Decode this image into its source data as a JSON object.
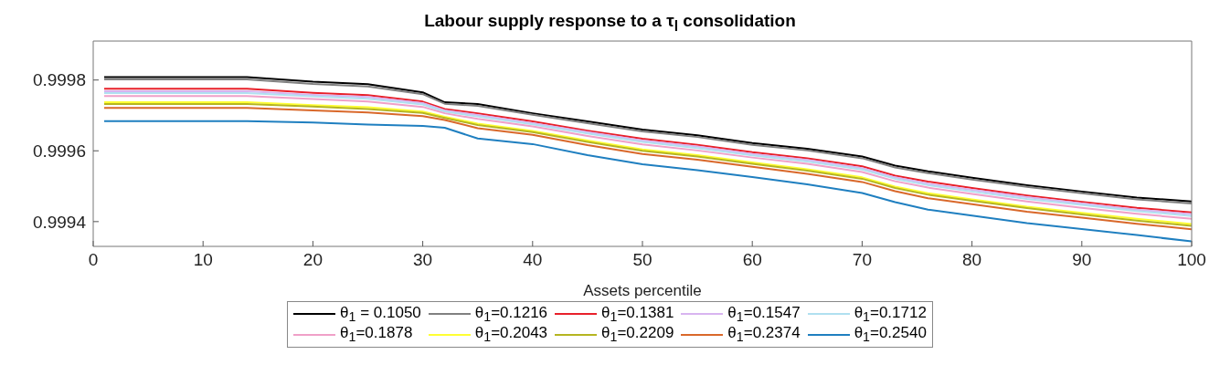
{
  "chart_data": {
    "type": "line",
    "title": "Labour supply response to a τ$_{l}$ consolidation",
    "xlabel": "Assets percentile",
    "x": [
      1,
      14,
      20,
      25,
      30,
      32,
      35,
      40,
      45,
      50,
      55,
      60,
      65,
      70,
      73,
      76,
      80,
      85,
      90,
      95,
      100
    ],
    "xlim": [
      0,
      100
    ],
    "xticks": [
      0,
      10,
      20,
      30,
      40,
      50,
      60,
      70,
      80,
      90,
      100
    ],
    "ylim": [
      0.99933,
      0.99991
    ],
    "yticks": [
      0.9994,
      0.9996,
      0.9998
    ],
    "grid": false,
    "legend": "bottom",
    "marker": "none",
    "line_style": "solid",
    "series": [
      {
        "name": "θ$_{1}$ = 0.1050",
        "color": "#000000",
        "values": [
          0.999808,
          0.999808,
          0.999795,
          0.999788,
          0.999765,
          0.999737,
          0.999732,
          0.999706,
          0.999683,
          0.99966,
          0.999644,
          0.999622,
          0.999606,
          0.999584,
          0.999558,
          0.999542,
          0.999524,
          0.999503,
          0.999485,
          0.999468,
          0.999457
        ]
      },
      {
        "name": "θ$_{1}$=0.1216",
        "color": "#808080",
        "values": [
          0.999802,
          0.999802,
          0.999789,
          0.999782,
          0.99976,
          0.999733,
          0.999727,
          0.999702,
          0.999678,
          0.999655,
          0.999639,
          0.999617,
          0.999601,
          0.999579,
          0.999553,
          0.999537,
          0.999519,
          0.999498,
          0.99948,
          0.999463,
          0.999451
        ]
      },
      {
        "name": "θ$_{1}$=0.1381",
        "color": "#e8202a",
        "values": [
          0.999775,
          0.999775,
          0.999764,
          0.999757,
          0.999739,
          0.999718,
          0.999706,
          0.999683,
          0.999657,
          0.999634,
          0.999617,
          0.999596,
          0.999579,
          0.999556,
          0.99953,
          0.999513,
          0.999495,
          0.999474,
          0.999456,
          0.999439,
          0.999426
        ]
      },
      {
        "name": "θ$_{1}$=0.1547",
        "color": "#d8b4f0",
        "values": [
          0.999768,
          0.999768,
          0.999758,
          0.999752,
          0.999735,
          0.999714,
          0.999701,
          0.999678,
          0.999653,
          0.999629,
          0.999612,
          0.999591,
          0.999574,
          0.999551,
          0.999525,
          0.999507,
          0.99949,
          0.999469,
          0.999451,
          0.999434,
          0.999421
        ]
      },
      {
        "name": "θ$_{1}$=0.1712",
        "color": "#b0e0f0",
        "values": [
          0.999763,
          0.999763,
          0.999754,
          0.999747,
          0.999731,
          0.999711,
          0.999697,
          0.999675,
          0.999649,
          0.999625,
          0.999608,
          0.999587,
          0.99957,
          0.999547,
          0.999521,
          0.999503,
          0.999485,
          0.999464,
          0.999447,
          0.99943,
          0.999416
        ]
      },
      {
        "name": "θ$_{1}$=0.1878",
        "color": "#f0a0c8",
        "values": [
          0.999755,
          0.999755,
          0.999746,
          0.999739,
          0.999724,
          0.999706,
          0.99969,
          0.999669,
          0.999642,
          0.999618,
          0.999601,
          0.999581,
          0.999563,
          0.99954,
          0.999514,
          0.999496,
          0.999478,
          0.999457,
          0.999439,
          0.999422,
          0.999408
        ]
      },
      {
        "name": "θ$_{1}$=0.2043",
        "color": "#ffff33",
        "values": [
          0.999737,
          0.999737,
          0.999729,
          0.999723,
          0.999711,
          0.999696,
          0.999677,
          0.999656,
          0.999629,
          0.999604,
          0.999588,
          0.999567,
          0.999548,
          0.999525,
          0.999499,
          0.99948,
          0.999463,
          0.999442,
          0.999425,
          0.999408,
          0.999393
        ]
      },
      {
        "name": "θ$_{1}$=0.2209",
        "color": "#b5b520",
        "values": [
          0.999732,
          0.999732,
          0.999725,
          0.999718,
          0.999707,
          0.999693,
          0.999673,
          0.999653,
          0.999625,
          0.9996,
          0.999584,
          0.999563,
          0.999544,
          0.999521,
          0.999495,
          0.999476,
          0.999459,
          0.999438,
          0.99942,
          0.999403,
          0.999388
        ]
      },
      {
        "name": "θ$_{1}$=0.2374",
        "color": "#d9682a",
        "values": [
          0.999721,
          0.999721,
          0.999714,
          0.999708,
          0.999698,
          0.999687,
          0.999664,
          0.999645,
          0.999616,
          0.999591,
          0.999575,
          0.999555,
          0.999535,
          0.999512,
          0.999486,
          0.999466,
          0.999449,
          0.999428,
          0.999411,
          0.999394,
          0.999378
        ]
      },
      {
        "name": "θ$_{1}$=0.2540",
        "color": "#1f7fc0",
        "values": [
          0.999684,
          0.999684,
          0.99968,
          0.999674,
          0.99967,
          0.999665,
          0.999635,
          0.999619,
          0.999588,
          0.999562,
          0.999545,
          0.999526,
          0.999505,
          0.999481,
          0.999455,
          0.999434,
          0.999417,
          0.999396,
          0.999379,
          0.999362,
          0.999344
        ]
      }
    ]
  }
}
